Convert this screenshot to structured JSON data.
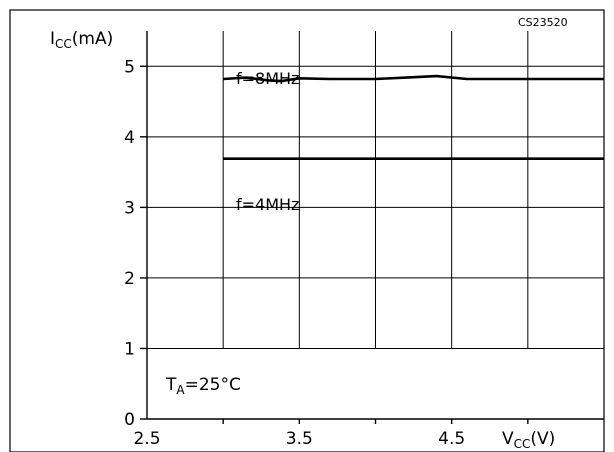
{
  "chart_data": {
    "type": "line",
    "figure_id": "CS23520",
    "ylabel": {
      "symbol": "I",
      "sub": "CC",
      "unit": "(mA)"
    },
    "xlabel": {
      "symbol": "V",
      "sub": "CC",
      "unit": "(V)"
    },
    "xlim": [
      2.5,
      5.5
    ],
    "ylim": [
      0,
      5.5
    ],
    "xticks": [
      "2.5",
      "3.5",
      "4.5"
    ],
    "xtick_values": [
      2.5,
      3.5,
      4.5
    ],
    "yticks": [
      "0",
      "1",
      "2",
      "3",
      "4",
      "5"
    ],
    "ytick_values": [
      0,
      1,
      2,
      3,
      4,
      5
    ],
    "grid": true,
    "annotation": {
      "symbol": "T",
      "sub": "A",
      "text": "=25°C"
    },
    "series": [
      {
        "name": "f=8MHz",
        "x": [
          3.0,
          3.15,
          3.3,
          3.38,
          3.5,
          3.7,
          4.0,
          4.2,
          4.4,
          4.6,
          5.0,
          5.5
        ],
        "y": [
          4.82,
          4.84,
          4.8,
          4.79,
          4.83,
          4.82,
          4.82,
          4.84,
          4.86,
          4.82,
          4.82,
          4.82
        ]
      },
      {
        "name": "f=4MHz",
        "x": [
          3.0,
          5.5
        ],
        "y": [
          3.69,
          3.69
        ]
      }
    ]
  }
}
